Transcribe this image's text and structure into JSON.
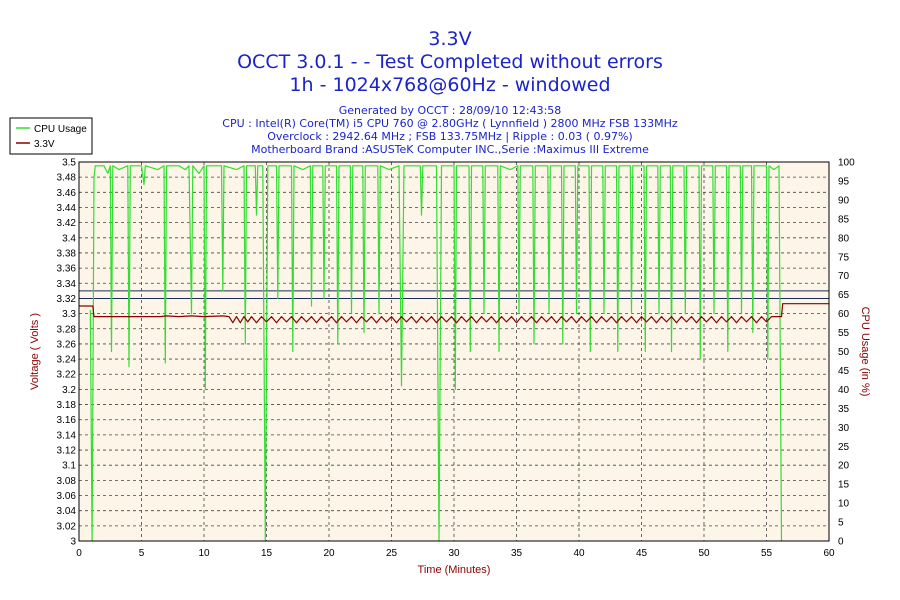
{
  "title_lines": [
    "3.3V",
    "OCCT 3.0.1 -  - Test Completed without errors",
    "1h - 1024x768@60Hz - windowed"
  ],
  "info_lines": [
    "Generated by OCCT : 28/09/10 12:43:58",
    "CPU : Intel(R) Core(TM) i5 CPU 760 @ 2.80GHz ( Lynnfield ) 2800 MHz FSB 133MHz",
    "Overclock : 2942.64 MHz ; FSB 133.75MHz | Ripple : 0.03 ( 0.97%)",
    "Motherboard Brand :ASUSTeK Computer INC.,Serie :Maximus III Extreme"
  ],
  "colors": {
    "title": "#1a24c8",
    "axis_label": "#8b0000",
    "cpu_series": "#33dd33",
    "voltage_series": "#8b0000",
    "reference_line": "#1e2a5a",
    "plot_background": "#fdf5e8",
    "grid": "#444444"
  },
  "chart_data": {
    "type": "line",
    "xlabel": "Time (Minutes)",
    "ylabel_left": "Voltage ( Volts )",
    "ylabel_right": "CPU Usage (in %)",
    "xlim": [
      0,
      60
    ],
    "ylim_left": [
      3.0,
      3.5
    ],
    "ylim_right": [
      0,
      100
    ],
    "x_ticks": [
      0,
      5,
      10,
      15,
      20,
      25,
      30,
      35,
      40,
      45,
      50,
      55,
      60
    ],
    "y_left_ticks": [
      "3",
      "3.02",
      "3.04",
      "3.06",
      "3.08",
      "3.1",
      "3.12",
      "3.14",
      "3.16",
      "3.18",
      "3.2",
      "3.22",
      "3.24",
      "3.26",
      "3.28",
      "3.3",
      "3.32",
      "3.34",
      "3.36",
      "3.38",
      "3.4",
      "3.42",
      "3.44",
      "3.46",
      "3.48",
      "3.5"
    ],
    "y_right_ticks": [
      0,
      5,
      10,
      15,
      20,
      25,
      30,
      35,
      40,
      45,
      50,
      55,
      60,
      65,
      70,
      75,
      80,
      85,
      90,
      95,
      100
    ],
    "grid": true,
    "legend_position": "top-left",
    "reference_lines": [
      3.32,
      3.33
    ],
    "series": [
      {
        "name": "CPU Usage",
        "axis": "right",
        "points": [
          [
            0.9,
            61
          ],
          [
            1.05,
            0
          ],
          [
            1.2,
            96
          ],
          [
            1.3,
            99
          ],
          [
            2,
            99
          ],
          [
            2.3,
            97
          ],
          [
            2.5,
            99
          ],
          [
            2.6,
            50
          ],
          [
            2.7,
            99
          ],
          [
            3.2,
            98
          ],
          [
            3.9,
            99
          ],
          [
            4.0,
            46
          ],
          [
            4.1,
            99
          ],
          [
            5,
            99
          ],
          [
            5.2,
            94
          ],
          [
            5.3,
            99
          ],
          [
            6.3,
            98
          ],
          [
            6.8,
            99
          ],
          [
            6.9,
            47
          ],
          [
            7.0,
            99
          ],
          [
            8.0,
            99
          ],
          [
            8.5,
            98
          ],
          [
            8.8,
            99
          ],
          [
            9.0,
            60
          ],
          [
            9.1,
            99
          ],
          [
            9.6,
            97
          ],
          [
            10.0,
            99
          ],
          [
            10.1,
            40
          ],
          [
            10.2,
            99
          ],
          [
            11.4,
            99
          ],
          [
            11.5,
            66
          ],
          [
            11.6,
            99
          ],
          [
            12.6,
            98
          ],
          [
            13.2,
            99
          ],
          [
            13.3,
            52
          ],
          [
            13.4,
            99
          ],
          [
            14.1,
            99
          ],
          [
            14.2,
            86
          ],
          [
            14.3,
            99
          ],
          [
            14.7,
            99
          ],
          [
            14.9,
            0
          ],
          [
            15.1,
            99
          ],
          [
            15.8,
            99
          ],
          [
            15.9,
            64
          ],
          [
            16.0,
            99
          ],
          [
            17.0,
            99
          ],
          [
            17.1,
            50
          ],
          [
            17.2,
            99
          ],
          [
            17.9,
            98
          ],
          [
            18.5,
            99
          ],
          [
            18.6,
            62
          ],
          [
            18.7,
            99
          ],
          [
            19.5,
            99
          ],
          [
            19.6,
            64
          ],
          [
            19.7,
            99
          ],
          [
            20.6,
            99
          ],
          [
            20.7,
            52
          ],
          [
            20.8,
            99
          ],
          [
            21.7,
            99
          ],
          [
            21.8,
            60
          ],
          [
            21.9,
            99
          ],
          [
            22.7,
            99
          ],
          [
            22.8,
            55
          ],
          [
            22.9,
            99
          ],
          [
            23.9,
            99
          ],
          [
            24.0,
            60
          ],
          [
            24.1,
            99
          ],
          [
            24.8,
            98
          ],
          [
            25.6,
            99
          ],
          [
            25.8,
            41
          ],
          [
            26.0,
            99
          ],
          [
            27.3,
            99
          ],
          [
            27.4,
            86
          ],
          [
            27.5,
            99
          ],
          [
            28.6,
            99
          ],
          [
            28.8,
            0
          ],
          [
            29.0,
            99
          ],
          [
            30.0,
            99
          ],
          [
            30.1,
            40
          ],
          [
            30.2,
            99
          ],
          [
            31.2,
            99
          ],
          [
            31.3,
            50
          ],
          [
            31.4,
            99
          ],
          [
            32.3,
            99
          ],
          [
            32.4,
            60
          ],
          [
            32.5,
            99
          ],
          [
            33.5,
            99
          ],
          [
            33.6,
            50
          ],
          [
            33.7,
            99
          ],
          [
            34.5,
            98
          ],
          [
            35.1,
            99
          ],
          [
            35.2,
            60
          ],
          [
            35.3,
            99
          ],
          [
            36.3,
            99
          ],
          [
            36.4,
            52
          ],
          [
            36.5,
            99
          ],
          [
            37.5,
            99
          ],
          [
            37.6,
            60
          ],
          [
            37.7,
            99
          ],
          [
            38.6,
            99
          ],
          [
            38.7,
            52
          ],
          [
            38.8,
            99
          ],
          [
            39.7,
            99
          ],
          [
            39.8,
            60
          ],
          [
            39.9,
            99
          ],
          [
            40.8,
            99
          ],
          [
            40.9,
            50
          ],
          [
            41.0,
            99
          ],
          [
            41.9,
            99
          ],
          [
            42.0,
            60
          ],
          [
            42.1,
            99
          ],
          [
            43.0,
            99
          ],
          [
            43.1,
            50
          ],
          [
            43.2,
            99
          ],
          [
            44.1,
            99
          ],
          [
            44.2,
            60
          ],
          [
            44.3,
            99
          ],
          [
            45.2,
            99
          ],
          [
            45.3,
            50
          ],
          [
            45.4,
            99
          ],
          [
            46.3,
            99
          ],
          [
            46.4,
            60
          ],
          [
            46.5,
            99
          ],
          [
            47.3,
            99
          ],
          [
            47.4,
            50
          ],
          [
            47.5,
            99
          ],
          [
            48.4,
            99
          ],
          [
            48.5,
            60
          ],
          [
            48.6,
            99
          ],
          [
            49.6,
            99
          ],
          [
            49.7,
            48
          ],
          [
            49.8,
            99
          ],
          [
            50.7,
            99
          ],
          [
            50.8,
            60
          ],
          [
            50.9,
            99
          ],
          [
            51.8,
            99
          ],
          [
            51.9,
            50
          ],
          [
            52.0,
            99
          ],
          [
            52.9,
            99
          ],
          [
            53.0,
            60
          ],
          [
            53.1,
            99
          ],
          [
            53.8,
            99
          ],
          [
            53.9,
            55
          ],
          [
            54.0,
            99
          ],
          [
            55.0,
            99
          ],
          [
            55.1,
            48
          ],
          [
            55.2,
            99
          ],
          [
            55.6,
            98
          ],
          [
            56.0,
            99
          ],
          [
            56.2,
            0
          ]
        ]
      },
      {
        "name": "3.3V",
        "axis": "left",
        "points": [
          [
            0,
            3.31
          ],
          [
            1.1,
            3.31
          ],
          [
            1.2,
            3.296
          ],
          [
            6.5,
            3.296
          ],
          [
            7.0,
            3.297
          ],
          [
            8.0,
            3.296
          ],
          [
            9.0,
            3.297
          ],
          [
            10.0,
            3.296
          ],
          [
            11.5,
            3.297
          ],
          [
            12.0,
            3.296
          ],
          [
            12.3,
            3.288
          ],
          [
            12.6,
            3.296
          ],
          [
            12.9,
            3.288
          ],
          [
            13.2,
            3.296
          ],
          [
            13.5,
            3.289
          ],
          [
            13.8,
            3.296
          ],
          [
            14.2,
            3.288
          ],
          [
            14.6,
            3.296
          ],
          [
            15.0,
            3.289
          ],
          [
            15.4,
            3.296
          ],
          [
            15.8,
            3.288
          ],
          [
            16.2,
            3.296
          ],
          [
            16.6,
            3.289
          ],
          [
            17.0,
            3.296
          ],
          [
            17.4,
            3.288
          ],
          [
            17.8,
            3.296
          ],
          [
            18.2,
            3.289
          ],
          [
            18.6,
            3.296
          ],
          [
            19.0,
            3.288
          ],
          [
            19.4,
            3.296
          ],
          [
            19.8,
            3.289
          ],
          [
            20.2,
            3.296
          ],
          [
            20.6,
            3.288
          ],
          [
            21.0,
            3.296
          ],
          [
            21.4,
            3.289
          ],
          [
            21.8,
            3.296
          ],
          [
            22.2,
            3.288
          ],
          [
            22.6,
            3.296
          ],
          [
            23.0,
            3.289
          ],
          [
            23.4,
            3.296
          ],
          [
            23.8,
            3.288
          ],
          [
            24.2,
            3.296
          ],
          [
            24.6,
            3.289
          ],
          [
            25.0,
            3.296
          ],
          [
            25.4,
            3.288
          ],
          [
            25.8,
            3.296
          ],
          [
            26.2,
            3.289
          ],
          [
            26.6,
            3.296
          ],
          [
            27.0,
            3.288
          ],
          [
            27.4,
            3.296
          ],
          [
            27.8,
            3.289
          ],
          [
            28.2,
            3.296
          ],
          [
            28.6,
            3.288
          ],
          [
            29.0,
            3.296
          ],
          [
            29.4,
            3.289
          ],
          [
            29.8,
            3.296
          ],
          [
            30.2,
            3.288
          ],
          [
            30.6,
            3.296
          ],
          [
            31.0,
            3.289
          ],
          [
            31.4,
            3.296
          ],
          [
            31.8,
            3.288
          ],
          [
            32.2,
            3.296
          ],
          [
            32.6,
            3.289
          ],
          [
            33.0,
            3.296
          ],
          [
            33.4,
            3.288
          ],
          [
            33.8,
            3.296
          ],
          [
            34.2,
            3.289
          ],
          [
            34.6,
            3.296
          ],
          [
            35.0,
            3.288
          ],
          [
            35.4,
            3.296
          ],
          [
            35.8,
            3.289
          ],
          [
            36.2,
            3.296
          ],
          [
            36.6,
            3.288
          ],
          [
            37.0,
            3.296
          ],
          [
            37.4,
            3.289
          ],
          [
            37.8,
            3.296
          ],
          [
            38.2,
            3.288
          ],
          [
            38.6,
            3.296
          ],
          [
            39.0,
            3.289
          ],
          [
            39.4,
            3.296
          ],
          [
            39.8,
            3.288
          ],
          [
            40.2,
            3.296
          ],
          [
            40.6,
            3.289
          ],
          [
            41.0,
            3.296
          ],
          [
            41.4,
            3.288
          ],
          [
            41.8,
            3.296
          ],
          [
            42.2,
            3.289
          ],
          [
            42.6,
            3.296
          ],
          [
            43.0,
            3.288
          ],
          [
            43.4,
            3.296
          ],
          [
            43.8,
            3.289
          ],
          [
            44.2,
            3.296
          ],
          [
            44.6,
            3.288
          ],
          [
            45.0,
            3.296
          ],
          [
            45.4,
            3.289
          ],
          [
            45.8,
            3.296
          ],
          [
            46.2,
            3.288
          ],
          [
            46.6,
            3.296
          ],
          [
            47.0,
            3.289
          ],
          [
            47.4,
            3.296
          ],
          [
            47.8,
            3.288
          ],
          [
            48.2,
            3.296
          ],
          [
            48.6,
            3.289
          ],
          [
            49.0,
            3.296
          ],
          [
            49.4,
            3.288
          ],
          [
            49.8,
            3.296
          ],
          [
            50.2,
            3.289
          ],
          [
            50.6,
            3.296
          ],
          [
            51.0,
            3.288
          ],
          [
            51.4,
            3.296
          ],
          [
            51.8,
            3.289
          ],
          [
            52.2,
            3.296
          ],
          [
            52.6,
            3.288
          ],
          [
            53.0,
            3.296
          ],
          [
            53.4,
            3.289
          ],
          [
            53.8,
            3.296
          ],
          [
            54.2,
            3.288
          ],
          [
            54.6,
            3.296
          ],
          [
            55.0,
            3.289
          ],
          [
            55.4,
            3.296
          ],
          [
            55.7,
            3.296
          ],
          [
            56.2,
            3.296
          ],
          [
            56.3,
            3.313
          ],
          [
            60,
            3.313
          ]
        ]
      }
    ]
  }
}
